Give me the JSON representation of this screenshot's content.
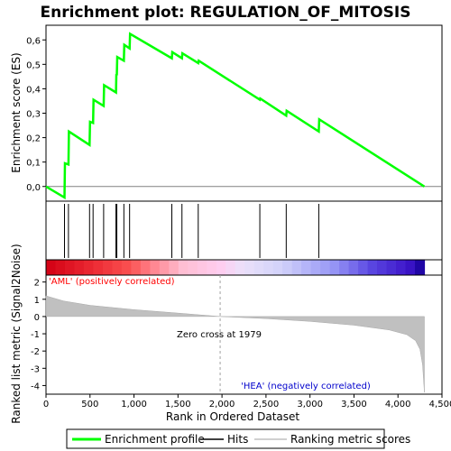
{
  "chart_data": {
    "type": "line",
    "title": "Enrichment plot: REGULATION_OF_MITOSIS",
    "es_panel": {
      "ylabel": "Enrichment score (ES)",
      "yticks": [
        "0,0",
        "0,1",
        "0,2",
        "0,3",
        "0,4",
        "0,5",
        "0,6"
      ],
      "ylim": [
        -0.06,
        0.66
      ],
      "series": [
        {
          "name": "Enrichment profile",
          "color": "#00ff00",
          "points": [
            [
              0,
              0
            ],
            [
              210,
              -0.045
            ],
            [
              215,
              0.095
            ],
            [
              255,
              0.09
            ],
            [
              260,
              0.225
            ],
            [
              495,
              0.17
            ],
            [
              500,
              0.265
            ],
            [
              535,
              0.26
            ],
            [
              540,
              0.355
            ],
            [
              655,
              0.33
            ],
            [
              660,
              0.415
            ],
            [
              795,
              0.385
            ],
            [
              800,
              0.46
            ],
            [
              805,
              0.455
            ],
            [
              810,
              0.53
            ],
            [
              885,
              0.515
            ],
            [
              890,
              0.58
            ],
            [
              950,
              0.565
            ],
            [
              955,
              0.625
            ],
            [
              1430,
              0.525
            ],
            [
              1435,
              0.55
            ],
            [
              1545,
              0.525
            ],
            [
              1550,
              0.545
            ],
            [
              1730,
              0.505
            ],
            [
              1735,
              0.515
            ],
            [
              2430,
              0.355
            ],
            [
              2435,
              0.36
            ],
            [
              2730,
              0.29
            ],
            [
              2735,
              0.31
            ],
            [
              3100,
              0.225
            ],
            [
              3105,
              0.275
            ],
            [
              4300,
              0
            ]
          ]
        }
      ]
    },
    "hits": [
      210,
      255,
      495,
      535,
      655,
      795,
      805,
      885,
      950,
      1430,
      1545,
      1730,
      2430,
      2730,
      3100
    ],
    "ranked_panel": {
      "ylabel": "Ranked list metric (Signal2Noise)",
      "yticks": [
        "2",
        "1",
        "0",
        "-1",
        "-2",
        "-3",
        "-4"
      ],
      "ylim": [
        -4.5,
        2.4
      ],
      "metric_curve": [
        [
          0,
          1.2
        ],
        [
          200,
          0.9
        ],
        [
          500,
          0.65
        ],
        [
          1000,
          0.4
        ],
        [
          1500,
          0.2
        ],
        [
          1979,
          0
        ],
        [
          2500,
          -0.12
        ],
        [
          3000,
          -0.28
        ],
        [
          3500,
          -0.5
        ],
        [
          3900,
          -0.78
        ],
        [
          4100,
          -1.05
        ],
        [
          4200,
          -1.4
        ],
        [
          4250,
          -1.9
        ],
        [
          4280,
          -2.8
        ],
        [
          4300,
          -4.4
        ]
      ],
      "zero_cross_label": "Zero cross at 1979",
      "zero_cross": 1979,
      "positive_label": "'AML' (positively correlated)",
      "negative_label": "'HEA' (negatively correlated)"
    },
    "xlabel": "Rank in Ordered Dataset",
    "xticks": [
      "0",
      "500",
      "1,000",
      "1,500",
      "2,000",
      "2,500",
      "3,000",
      "3,500",
      "4,000",
      "4,500"
    ],
    "xlim": [
      0,
      4500
    ],
    "legend": [
      {
        "label": "Enrichment profile",
        "color": "#00ff00"
      },
      {
        "label": "Hits",
        "color": "#000000"
      },
      {
        "label": "Ranking metric scores",
        "color": "#c0c0c0"
      }
    ]
  }
}
